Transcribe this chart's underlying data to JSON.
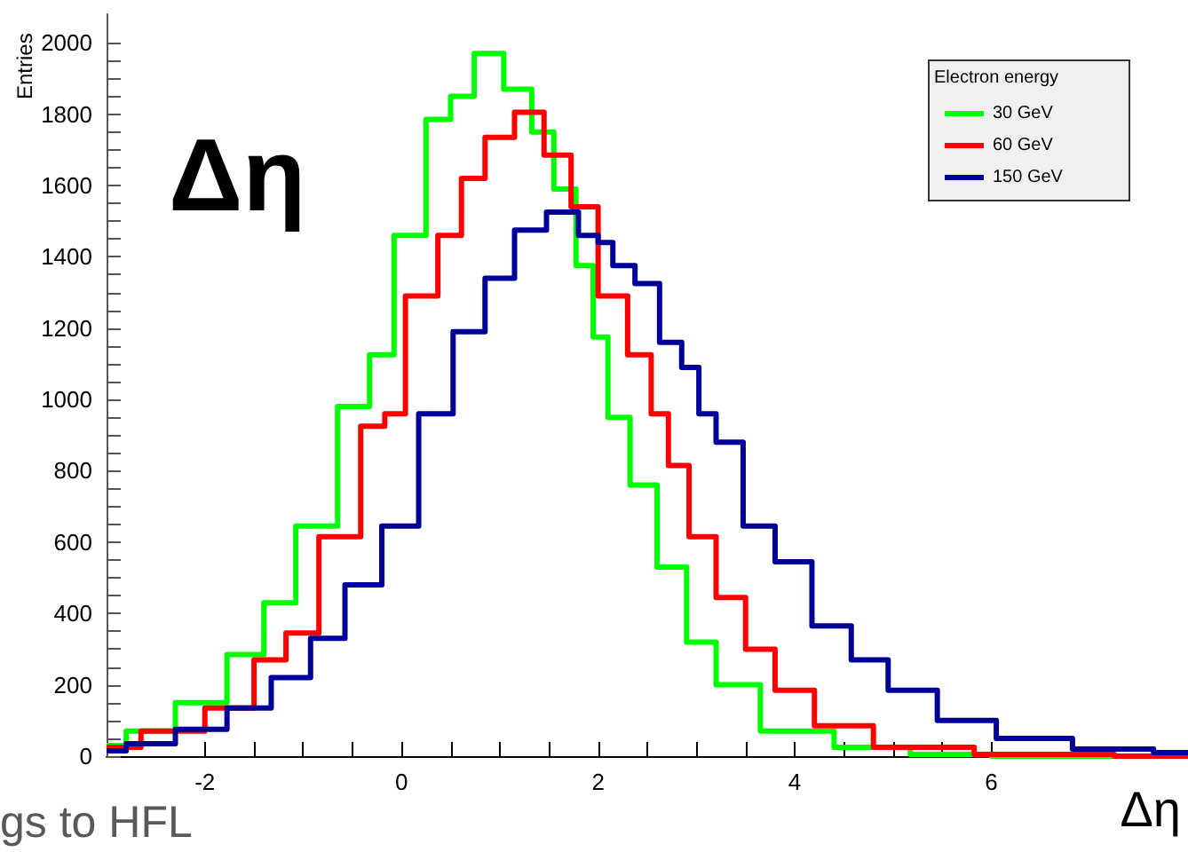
{
  "chart_data": {
    "type": "step",
    "xlabel": "Δη",
    "ylabel": "Entries",
    "legend_title": "Electron energy",
    "annotations": [
      "Δη",
      "gs to HFL"
    ],
    "xlim": [
      -3,
      8
    ],
    "xticks": [
      -2,
      0,
      2,
      4,
      6
    ],
    "ylim": [
      0,
      2080
    ],
    "yticks": [
      0,
      200,
      400,
      600,
      800,
      1000,
      1200,
      1400,
      1600,
      1800,
      2000
    ],
    "grid": false,
    "legend": "top right",
    "marker": "none",
    "line_style": "solid",
    "series": [
      {
        "name": "30 GeV",
        "color": "#00ff00",
        "x": [
          -3,
          -2.6,
          -2,
          -1.55,
          -1.25,
          -0.9,
          -0.4,
          -0.25,
          0.1,
          0.4,
          0.6,
          0.88,
          1.2,
          1.45,
          1.65,
          1.9,
          2.0,
          2.2,
          2.45,
          2.75,
          3.05,
          3.35,
          3.95,
          4.85,
          5.5,
          6.5,
          8
        ],
        "values": [
          30,
          70,
          150,
          285,
          430,
          645,
          980,
          1125,
          1460,
          1785,
          1850,
          1970,
          1870,
          1750,
          1590,
          1375,
          1175,
          950,
          760,
          530,
          320,
          200,
          70,
          25,
          5,
          0,
          0
        ]
      },
      {
        "name": "60 GeV",
        "color": "#ff0000",
        "x": [
          -3,
          -2.3,
          -1.7,
          -1.3,
          -1.05,
          -0.63,
          -0.2,
          -0.14,
          0.22,
          0.52,
          0.7,
          1.0,
          1.3,
          1.6,
          1.85,
          2.15,
          2.45,
          2.63,
          2.8,
          3.05,
          3.35,
          3.65,
          3.95,
          4.45,
          5.15,
          6.5,
          8
        ],
        "values": [
          25,
          70,
          135,
          270,
          345,
          615,
          925,
          960,
          1290,
          1460,
          1620,
          1735,
          1805,
          1685,
          1540,
          1290,
          1125,
          960,
          815,
          615,
          445,
          300,
          185,
          85,
          25,
          5,
          0
        ]
      },
      {
        "name": "150 GeV",
        "color": "#000099",
        "x": [
          -3,
          -2.6,
          -2,
          -1.55,
          -1.1,
          -0.75,
          -0.4,
          0,
          0.35,
          0.7,
          1.0,
          1.3,
          1.65,
          1.95,
          2.05,
          2.25,
          2.5,
          2.75,
          2.95,
          3.1,
          3.3,
          3.65,
          3.95,
          4.4,
          4.75,
          5.15,
          5.75,
          6.35,
          7.3,
          8
        ],
        "values": [
          15,
          35,
          75,
          135,
          220,
          330,
          480,
          645,
          960,
          1190,
          1340,
          1475,
          1525,
          1460,
          1440,
          1375,
          1325,
          1160,
          1090,
          960,
          880,
          645,
          545,
          365,
          270,
          185,
          100,
          50,
          20,
          10
        ]
      }
    ]
  }
}
